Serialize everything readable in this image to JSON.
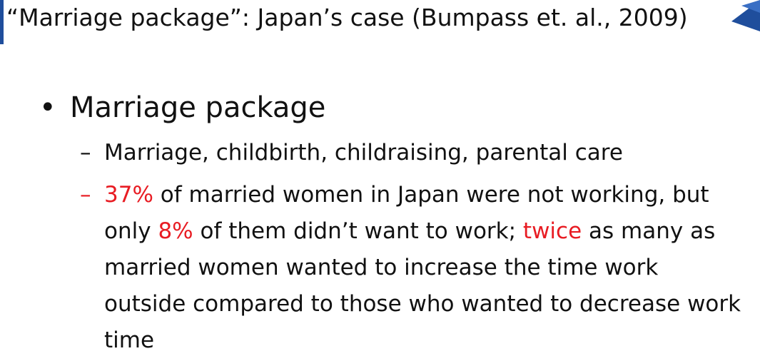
{
  "slide": {
    "title": "“Marriage package”: Japan’s case (Bumpass et. al., 2009)",
    "accent_color": "#1f4e9c",
    "highlight_color": "#e81c23",
    "bullet": {
      "symbol": "•",
      "label": "Marriage package"
    },
    "sub_items": [
      {
        "dash": "–",
        "text": "Marriage, childbirth, childraising, parental care"
      },
      {
        "dash": "–",
        "segments": [
          {
            "text": "37%",
            "highlight": true
          },
          {
            "text": " of married women in Japan were not working, but only ",
            "highlight": false
          },
          {
            "text": "8%",
            "highlight": true
          },
          {
            "text": " of them didn’t want to work; ",
            "highlight": false
          },
          {
            "text": "twice",
            "highlight": true
          },
          {
            "text": " as many as married women wanted to increase the time work outside compared to those who wanted to decrease work time",
            "highlight": false
          }
        ]
      }
    ]
  }
}
